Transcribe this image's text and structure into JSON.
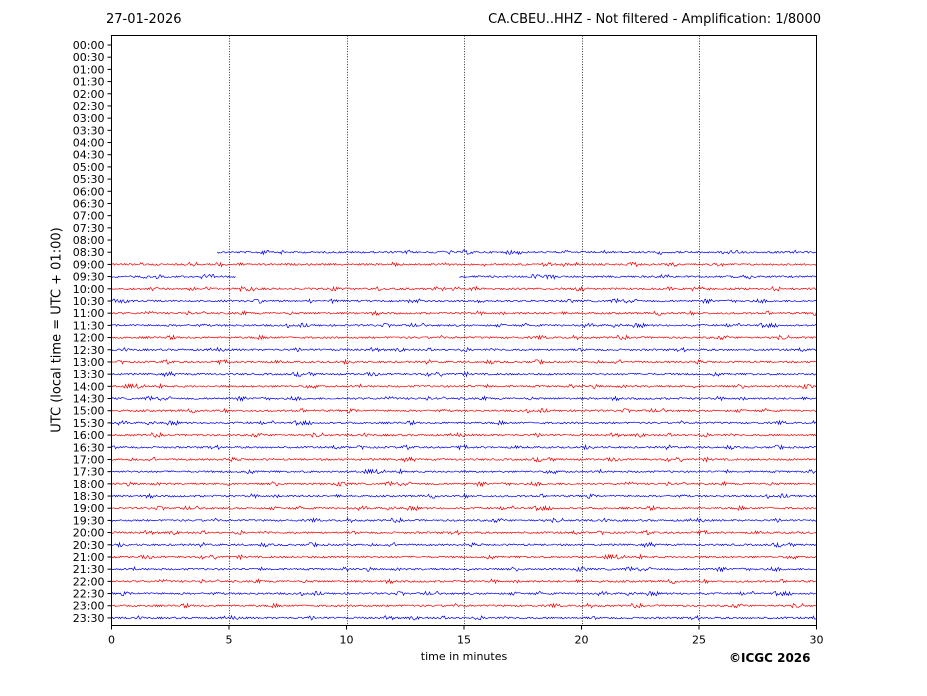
{
  "header": {
    "date": "27-01-2026",
    "title": "CA.CBEU..HHZ - Not filtered - Amplification: 1/8000"
  },
  "footer": {
    "copyright": "©ICGC 2026"
  },
  "colors": {
    "trace_a": "#ff0000",
    "trace_b": "#0000ff",
    "grid": "#000000",
    "axes": "#000000"
  },
  "chart_data": {
    "type": "line",
    "title": "CA.CBEU..HHZ - Not filtered - Amplification: 1/8000",
    "xlabel": "time in minutes",
    "ylabel": "UTC (local time = UTC + 01:00)",
    "xlim": [
      0,
      30
    ],
    "x_ticks": [
      0,
      5,
      10,
      15,
      20,
      25,
      30
    ],
    "x_gridlines": [
      5,
      10,
      15,
      20,
      25
    ],
    "grid": "vertical dotted",
    "y_tick_labels": [
      "00:00",
      "00:30",
      "01:00",
      "01:30",
      "02:00",
      "02:30",
      "03:00",
      "03:30",
      "04:00",
      "04:30",
      "05:00",
      "05:30",
      "06:00",
      "06:30",
      "07:00",
      "07:30",
      "08:00",
      "08:30",
      "09:00",
      "09:30",
      "10:00",
      "10:30",
      "11:00",
      "11:30",
      "12:00",
      "12:30",
      "13:00",
      "13:30",
      "14:00",
      "14:30",
      "15:00",
      "15:30",
      "16:00",
      "16:30",
      "17:00",
      "17:30",
      "18:00",
      "18:30",
      "19:00",
      "19:30",
      "20:00",
      "20:30",
      "21:00",
      "21:30",
      "22:00",
      "22:30",
      "23:00",
      "23:30"
    ],
    "traces": [
      {
        "row": "08:30",
        "color": "blue",
        "segments": [
          [
            4.5,
            30
          ]
        ]
      },
      {
        "row": "09:00",
        "color": "red",
        "segments": [
          [
            0,
            30
          ]
        ]
      },
      {
        "row": "09:30",
        "color": "blue",
        "segments": [
          [
            0,
            5.3
          ],
          [
            14.8,
            30
          ]
        ]
      },
      {
        "row": "10:00",
        "color": "red",
        "segments": [
          [
            0,
            30
          ]
        ]
      },
      {
        "row": "10:30",
        "color": "blue",
        "segments": [
          [
            0,
            30
          ]
        ]
      },
      {
        "row": "11:00",
        "color": "red",
        "segments": [
          [
            0,
            30
          ]
        ]
      },
      {
        "row": "11:30",
        "color": "blue",
        "segments": [
          [
            0,
            30
          ]
        ]
      },
      {
        "row": "12:00",
        "color": "red",
        "segments": [
          [
            0,
            30
          ]
        ]
      },
      {
        "row": "12:30",
        "color": "blue",
        "segments": [
          [
            0,
            30
          ]
        ]
      },
      {
        "row": "13:00",
        "color": "red",
        "segments": [
          [
            0,
            30
          ]
        ]
      },
      {
        "row": "13:30",
        "color": "blue",
        "segments": [
          [
            0,
            30
          ]
        ]
      },
      {
        "row": "14:00",
        "color": "red",
        "segments": [
          [
            0,
            30
          ]
        ]
      },
      {
        "row": "14:30",
        "color": "blue",
        "segments": [
          [
            0,
            30
          ]
        ]
      },
      {
        "row": "15:00",
        "color": "red",
        "segments": [
          [
            0,
            30
          ]
        ]
      },
      {
        "row": "15:30",
        "color": "blue",
        "segments": [
          [
            0,
            30
          ]
        ]
      },
      {
        "row": "16:00",
        "color": "red",
        "segments": [
          [
            0,
            30
          ]
        ]
      },
      {
        "row": "16:30",
        "color": "blue",
        "segments": [
          [
            0,
            30
          ]
        ]
      },
      {
        "row": "17:00",
        "color": "red",
        "segments": [
          [
            0,
            30
          ]
        ]
      },
      {
        "row": "17:30",
        "color": "blue",
        "segments": [
          [
            0,
            30
          ]
        ]
      },
      {
        "row": "18:00",
        "color": "red",
        "segments": [
          [
            0,
            30
          ]
        ]
      },
      {
        "row": "18:30",
        "color": "blue",
        "segments": [
          [
            0,
            30
          ]
        ]
      },
      {
        "row": "19:00",
        "color": "red",
        "segments": [
          [
            0,
            30
          ]
        ]
      },
      {
        "row": "19:30",
        "color": "blue",
        "segments": [
          [
            0,
            30
          ]
        ]
      },
      {
        "row": "20:00",
        "color": "red",
        "segments": [
          [
            0,
            30
          ]
        ]
      },
      {
        "row": "20:30",
        "color": "blue",
        "segments": [
          [
            0,
            30
          ]
        ]
      },
      {
        "row": "21:00",
        "color": "red",
        "segments": [
          [
            0,
            30
          ]
        ]
      },
      {
        "row": "21:30",
        "color": "blue",
        "segments": [
          [
            0,
            30
          ]
        ]
      },
      {
        "row": "22:00",
        "color": "red",
        "segments": [
          [
            0,
            30
          ]
        ]
      },
      {
        "row": "22:30",
        "color": "blue",
        "segments": [
          [
            0,
            30
          ]
        ]
      },
      {
        "row": "23:00",
        "color": "red",
        "segments": [
          [
            0,
            30
          ]
        ]
      },
      {
        "row": "23:30",
        "color": "blue",
        "segments": [
          [
            0,
            30
          ]
        ]
      }
    ]
  }
}
